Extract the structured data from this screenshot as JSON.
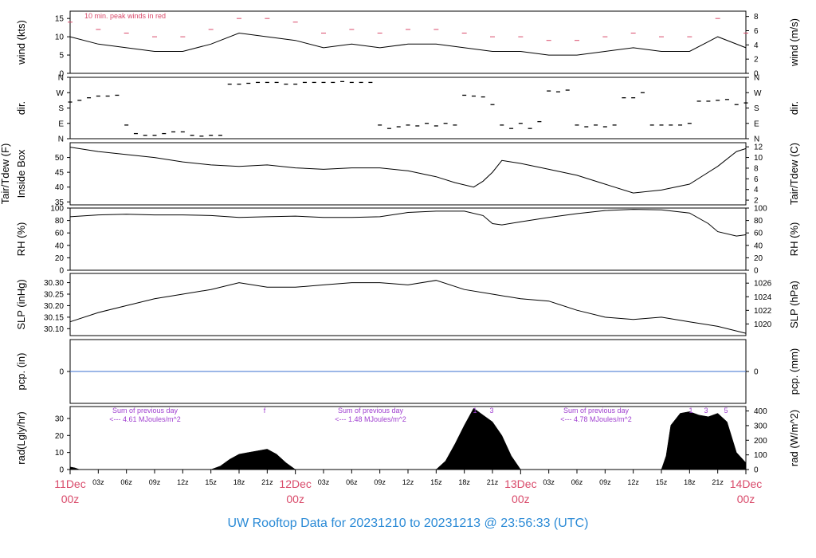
{
  "page": {
    "footer": "UW Rooftop Data for 20231210  to  20231213 @ 23:56:33  (UTC)"
  },
  "chart_data": {
    "type": "line",
    "time_axis": {
      "range_hours": [
        0,
        72
      ],
      "tick_labels": [
        "03z",
        "06z",
        "09z",
        "12z",
        "15z",
        "18z",
        "21z",
        "03z",
        "06z",
        "09z",
        "12z",
        "15z",
        "18z",
        "21z",
        "03z",
        "06z",
        "09z",
        "12z",
        "15z",
        "18z",
        "21z"
      ],
      "date_labels": [
        {
          "date": "11Dec",
          "hour": "00z"
        },
        {
          "date": "12Dec",
          "hour": "00z"
        },
        {
          "date": "13Dec",
          "hour": "00z"
        },
        {
          "date": "14Dec",
          "hour": "00z"
        }
      ],
      "date_color": "#d94a6a"
    },
    "panels": {
      "wind": {
        "ylabel_left": "wind (kts)",
        "ylabel_right": "wind (m/s)",
        "ylim": [
          0,
          17
        ],
        "left_ticks": [
          0,
          5,
          10,
          15
        ],
        "right_ticks": [
          0,
          2,
          4,
          6,
          8
        ],
        "annotation": "10 min. peak winds in red",
        "annotation_color": "#d94a6a",
        "peak_color": "#d94a6a",
        "series": [
          {
            "type": "line",
            "x": [
              0,
              3,
              6,
              9,
              12,
              15,
              18,
              21,
              24,
              27,
              30,
              33,
              36,
              39,
              42,
              45,
              48,
              51,
              54,
              57,
              60,
              63,
              66,
              69,
              72
            ],
            "y": [
              10,
              8,
              7,
              6,
              6,
              8,
              11,
              10,
              9,
              7,
              8,
              7,
              8,
              8,
              7,
              6,
              6,
              5,
              5,
              6,
              7,
              6,
              6,
              10,
              7
            ]
          }
        ],
        "peaks": {
          "x": [
            0,
            3,
            6,
            9,
            12,
            15,
            18,
            21,
            24,
            27,
            30,
            33,
            36,
            39,
            42,
            45,
            48,
            51,
            54,
            57,
            60,
            63,
            66,
            69,
            72
          ],
          "y": [
            14,
            12,
            11,
            10,
            10,
            12,
            15,
            15,
            14,
            11,
            12,
            11,
            12,
            12,
            11,
            10,
            10,
            9,
            9,
            10,
            11,
            10,
            10,
            15,
            11
          ]
        }
      },
      "direction": {
        "ylabel_left": "dir.",
        "ylabel_right": "dir.",
        "tick_labels": [
          "N",
          "W",
          "S",
          "E",
          "N"
        ],
        "ticks_deg": [
          360,
          270,
          180,
          90,
          0
        ],
        "series": [
          {
            "type": "scatter",
            "x": [
              0,
              1,
              2,
              3,
              4,
              5,
              6,
              7,
              8,
              9,
              10,
              11,
              12,
              13,
              14,
              15,
              16,
              17,
              18,
              19,
              20,
              21,
              22,
              23,
              24,
              25,
              26,
              27,
              28,
              29,
              30,
              31,
              32,
              33,
              34,
              35,
              36,
              37,
              38,
              39,
              40,
              41,
              42,
              43,
              44,
              45,
              46,
              47,
              48,
              49,
              50,
              51,
              52,
              53,
              54,
              55,
              56,
              57,
              58,
              59,
              60,
              61,
              62,
              63,
              64,
              65,
              66,
              67,
              68,
              69,
              70,
              71,
              72
            ],
            "y": [
              215,
              225,
              240,
              250,
              250,
              255,
              80,
              30,
              20,
              20,
              30,
              40,
              40,
              20,
              15,
              20,
              20,
              320,
              320,
              325,
              330,
              330,
              330,
              320,
              320,
              330,
              330,
              330,
              330,
              335,
              330,
              330,
              330,
              80,
              60,
              70,
              80,
              75,
              90,
              75,
              90,
              80,
              255,
              250,
              245,
              200,
              80,
              60,
              90,
              60,
              100,
              280,
              275,
              285,
              80,
              70,
              80,
              70,
              80,
              240,
              240,
              270,
              80,
              80,
              80,
              80,
              90,
              220,
              220,
              225,
              230,
              200,
              210
            ]
          }
        ]
      },
      "temperature": {
        "ylabel_left": "Tair/Tdew (F)",
        "ylabel_left_2": "Inside Box",
        "ylabel_right": "Tair/Tdew (C)",
        "ylim": [
          34,
          55
        ],
        "left_ticks": [
          35,
          40,
          45,
          50
        ],
        "right_ticks": [
          2,
          4,
          6,
          8,
          10,
          12
        ],
        "series": [
          {
            "type": "line",
            "x": [
              0,
              3,
              6,
              9,
              12,
              15,
              18,
              21,
              24,
              27,
              30,
              33,
              36,
              39,
              41,
              43,
              44,
              45,
              46,
              48,
              51,
              54,
              57,
              60,
              63,
              66,
              69,
              71,
              72
            ],
            "y": [
              53.5,
              52,
              51,
              50,
              48.5,
              47.5,
              47,
              47.5,
              46.5,
              46,
              46.5,
              46.5,
              45.5,
              43.5,
              41.5,
              40,
              42,
              45,
              49,
              48,
              46,
              44,
              41,
              38,
              39,
              41,
              47,
              52,
              53
            ]
          }
        ]
      },
      "rh": {
        "ylabel_left": "RH (%)",
        "ylabel_right": "RH (%)",
        "ylim": [
          0,
          100
        ],
        "left_ticks": [
          0,
          20,
          40,
          60,
          80,
          100
        ],
        "right_ticks": [
          0,
          20,
          40,
          60,
          80,
          100
        ],
        "series": [
          {
            "type": "line",
            "x": [
              0,
              3,
              6,
              9,
              12,
              15,
              18,
              21,
              24,
              27,
              30,
              33,
              36,
              39,
              42,
              44,
              45,
              46,
              48,
              51,
              54,
              57,
              60,
              63,
              66,
              68,
              69,
              71,
              72
            ],
            "y": [
              86,
              89,
              90,
              89,
              89,
              88,
              85,
              86,
              87,
              85,
              85,
              86,
              93,
              95,
              95,
              88,
              75,
              73,
              78,
              85,
              91,
              96,
              98,
              97,
              92,
              75,
              62,
              55,
              57
            ]
          }
        ]
      },
      "slp": {
        "ylabel_left": "SLP (inHg)",
        "ylabel_right": "SLP (hPa)",
        "ylim": [
          30.07,
          30.34
        ],
        "left_ticks": [
          30.1,
          30.15,
          30.2,
          30.25,
          30.3
        ],
        "right_ticks": [
          1020,
          1022,
          1024,
          1026
        ],
        "series": [
          {
            "type": "line",
            "x": [
              0,
              3,
              6,
              9,
              12,
              15,
              18,
              21,
              24,
              27,
              30,
              33,
              36,
              39,
              42,
              45,
              48,
              51,
              54,
              57,
              60,
              63,
              66,
              69,
              72
            ],
            "y": [
              30.13,
              30.17,
              30.2,
              30.23,
              30.25,
              30.27,
              30.3,
              30.28,
              30.28,
              30.29,
              30.3,
              30.3,
              30.29,
              30.31,
              30.27,
              30.25,
              30.23,
              30.22,
              30.18,
              30.15,
              30.14,
              30.15,
              30.13,
              30.11,
              30.08
            ]
          }
        ]
      },
      "precip": {
        "ylabel_left": "pcp. (in)",
        "ylabel_right": "pcp. (mm)",
        "left_ticks": [
          0
        ],
        "right_ticks": [
          0
        ],
        "line_color": "#3a6fcf",
        "series": [
          {
            "type": "line",
            "x": [
              0,
              72
            ],
            "y": [
              0,
              0
            ]
          }
        ]
      },
      "radiation": {
        "ylabel_left": "rad(Lgly/hr)",
        "ylabel_right": "rad (W/m^2)",
        "ylim": [
          0,
          37
        ],
        "left_ticks": [
          0,
          10,
          20,
          30
        ],
        "right_ticks": [
          0,
          100,
          200,
          300,
          400
        ],
        "annotation_color": "#a040d0",
        "annotations": [
          {
            "line1": "Sum of previous day",
            "line2": "<--- 4.61 MJoules/m^2"
          },
          {
            "line1": "Sum of previous day",
            "line2": "<--- 1.48 MJoules/m^2"
          },
          {
            "line1": "Sum of previous day",
            "line2": "<--- 4.78 MJoules/m^2"
          }
        ],
        "marker_labels": [
          "f",
          "1",
          "3",
          "1",
          "3",
          "5"
        ],
        "series": [
          {
            "type": "area",
            "x": [
              0,
              0.5,
              1,
              15,
              16,
              17,
              18,
              19,
              20,
              21,
              22,
              23,
              24,
              39,
              40,
              41,
              42,
              43,
              44,
              45,
              46,
              47,
              48,
              63,
              63.5,
              64,
              65,
              66,
              67,
              68,
              69,
              70,
              71,
              72
            ],
            "y": [
              1.5,
              1,
              0,
              0,
              2,
              6,
              9,
              10,
              11,
              12,
              9,
              4,
              0,
              0,
              5,
              15,
              26,
              36,
              32,
              28,
              20,
              8,
              0,
              0,
              8,
              26,
              33,
              34,
              32,
              31,
              33,
              28,
              10,
              4
            ]
          }
        ]
      }
    }
  }
}
